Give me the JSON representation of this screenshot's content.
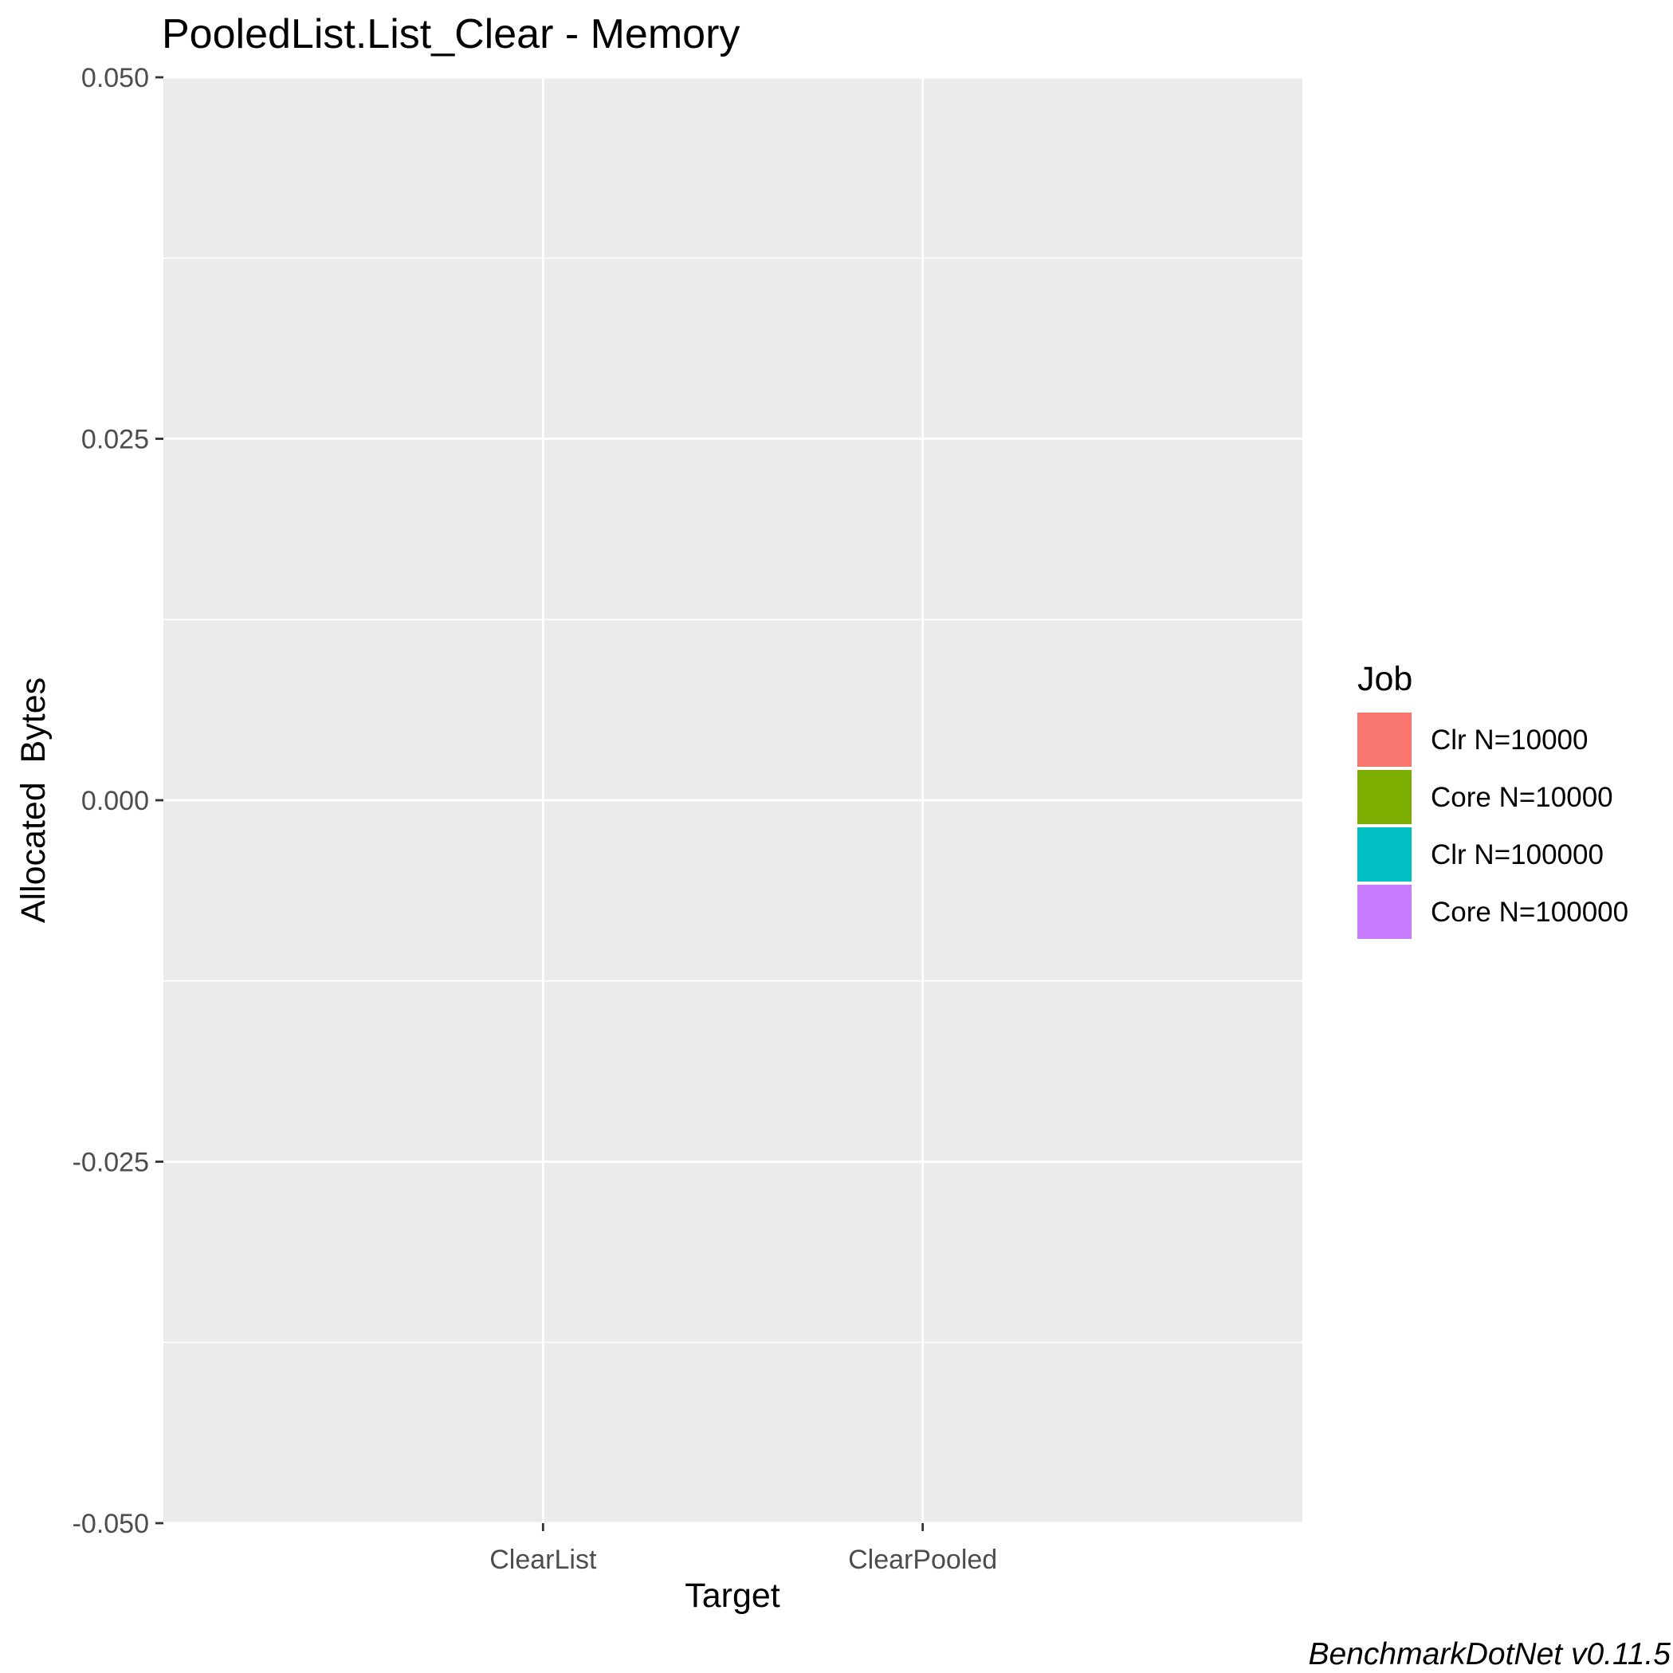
{
  "chart_data": {
    "type": "bar",
    "title": "PooledList.List_Clear - Memory",
    "xlabel": "Target",
    "ylabel": "Allocated  Bytes",
    "categories": [
      "ClearList",
      "ClearPooled"
    ],
    "ylim": [
      -0.05,
      0.05
    ],
    "yticks": [
      -0.05,
      -0.025,
      0,
      0.025,
      0.05
    ],
    "ytick_labels": [
      "-0.050",
      "-0.025",
      "0.000",
      "0.025",
      "0.050"
    ],
    "grid": true,
    "legend": {
      "title": "Job",
      "placement": "right",
      "entries": [
        {
          "label": "Clr N=10000",
          "color": "#F8766D"
        },
        {
          "label": "Core N=10000",
          "color": "#7CAE00"
        },
        {
          "label": "Clr N=100000",
          "color": "#00BFC4"
        },
        {
          "label": "Core N=100000",
          "color": "#C77CFF"
        }
      ]
    },
    "series": [
      {
        "name": "Clr N=10000",
        "values": [
          0,
          0
        ]
      },
      {
        "name": "Core N=10000",
        "values": [
          0,
          0
        ]
      },
      {
        "name": "Clr N=100000",
        "values": [
          0,
          0
        ]
      },
      {
        "name": "Core N=100000",
        "values": [
          0,
          0
        ]
      }
    ],
    "caption": "BenchmarkDotNet v0.11.5",
    "colors": {
      "panel": "#EBEBEB",
      "grid": "#FFFFFF",
      "tick": "#333333"
    }
  }
}
